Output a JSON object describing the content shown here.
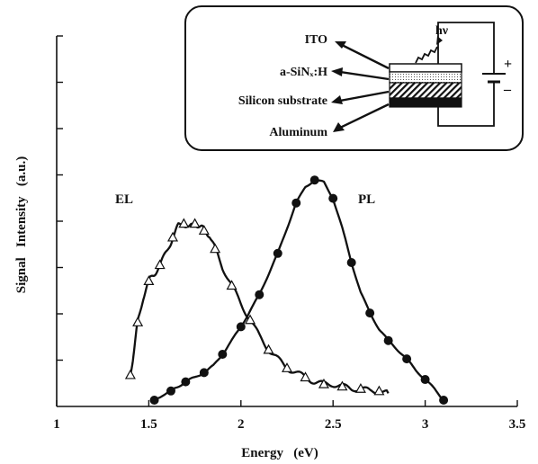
{
  "chart_data": {
    "type": "line",
    "title": "",
    "xlabel": "Energy   (eV)",
    "ylabel": "Signal   Intensity   (a.u.)",
    "xlim": [
      1,
      3.5
    ],
    "ylim": [
      0,
      1
    ],
    "x_ticks": [
      "1",
      "1.5",
      "2",
      "2.5",
      "3",
      "3.5"
    ],
    "y_tick_count": 8,
    "grid": false,
    "series": [
      {
        "name": "EL",
        "marker": "open-triangle",
        "x": [
          1.4,
          1.42,
          1.44,
          1.47,
          1.5,
          1.53,
          1.56,
          1.6,
          1.63,
          1.66,
          1.69,
          1.72,
          1.75,
          1.78,
          1.8,
          1.83,
          1.86,
          1.9,
          1.95,
          2.0,
          2.05,
          2.1,
          2.15,
          2.2,
          2.25,
          2.3,
          2.35,
          2.4,
          2.45,
          2.5,
          2.55,
          2.6,
          2.65,
          2.7,
          2.75,
          2.8
        ],
        "y": [
          0.11,
          0.22,
          0.34,
          0.45,
          0.52,
          0.55,
          0.59,
          0.65,
          0.71,
          0.76,
          0.77,
          0.75,
          0.77,
          0.76,
          0.74,
          0.72,
          0.66,
          0.58,
          0.5,
          0.42,
          0.35,
          0.28,
          0.22,
          0.18,
          0.14,
          0.12,
          0.1,
          0.08,
          0.07,
          0.07,
          0.06,
          0.05,
          0.05,
          0.04,
          0.04,
          0.03
        ]
      },
      {
        "name": "PL",
        "marker": "filled-circle",
        "x": [
          1.53,
          1.57,
          1.62,
          1.66,
          1.7,
          1.75,
          1.8,
          1.85,
          1.9,
          1.95,
          2.0,
          2.05,
          2.1,
          2.15,
          2.2,
          2.25,
          2.3,
          2.35,
          2.4,
          2.45,
          2.5,
          2.55,
          2.6,
          2.65,
          2.7,
          2.75,
          2.8,
          2.85,
          2.9,
          2.95,
          3.0,
          3.05,
          3.1
        ],
        "y": [
          0.0,
          0.02,
          0.04,
          0.06,
          0.08,
          0.1,
          0.12,
          0.15,
          0.2,
          0.26,
          0.32,
          0.39,
          0.46,
          0.55,
          0.64,
          0.75,
          0.86,
          0.93,
          0.96,
          0.95,
          0.88,
          0.75,
          0.6,
          0.47,
          0.38,
          0.31,
          0.26,
          0.22,
          0.18,
          0.13,
          0.09,
          0.05,
          0.0
        ]
      }
    ]
  },
  "inset": {
    "labels": [
      "ITO",
      "a-SiNₓ:H",
      "Silicon substrate",
      "Aluminum"
    ],
    "light_label": "hν",
    "plus": "+",
    "minus": "–"
  }
}
